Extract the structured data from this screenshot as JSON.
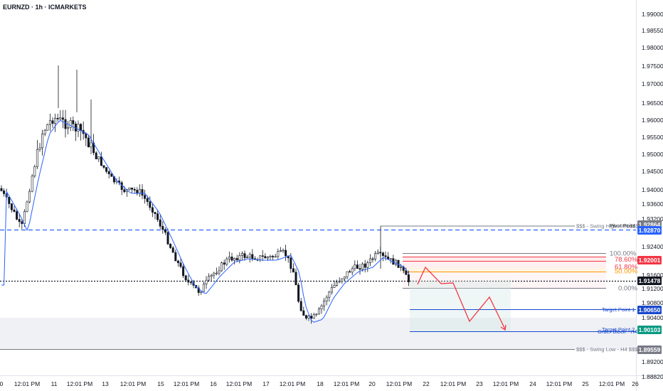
{
  "header": {
    "symbol_title": "EURNZD · 1h · ICMARKETS"
  },
  "y_axis": {
    "ticks": [
      "1.99000",
      "1.98550",
      "1.98000",
      "1.97500",
      "1.97000",
      "1.96500",
      "1.96000",
      "1.95500",
      "1.95000",
      "1.94500",
      "1.94000",
      "1.93600",
      "1.93200",
      "1.92400",
      "1.91600",
      "1.91200",
      "1.90800",
      "1.90400",
      "1.89200",
      "1.88820"
    ]
  },
  "x_axis": {
    "ticks": [
      "0",
      "12:01 PM",
      "11",
      "12:01 PM",
      "13",
      "12:01 PM",
      "15",
      "12:01 PM",
      "16",
      "12:01 PM",
      "17",
      "12:01 PM",
      "18",
      "12:01 PM",
      "20",
      "12:01 PM",
      "22",
      "12:01 PM",
      "23",
      "12:01 PM",
      "24",
      "12:01 PM",
      "25",
      "12:01 PM",
      "26"
    ]
  },
  "price_tags": [
    {
      "id": "swing-high",
      "label": "1.92864",
      "color": "#787b86"
    },
    {
      "id": "pivot",
      "label": "1.92870",
      "color": "#2962ff"
    },
    {
      "id": "fib-top",
      "label": "1.92001",
      "color": "#f23645"
    },
    {
      "id": "current",
      "label": "1.91478",
      "color": "#131722"
    },
    {
      "id": "target-1",
      "label": "1.90650",
      "color": "#1848cc"
    },
    {
      "id": "order-block",
      "label": "1.90103",
      "color": "#089981"
    },
    {
      "id": "swing-low",
      "label": "1.89559",
      "color": "#787b86"
    }
  ],
  "annotations": {
    "swing_high": "$$$ - Swing High - H4 $$$",
    "pivot_point": "Pivot Point",
    "swing_low": "$$$ - Swing Low - H4 $$$",
    "target_point_1": "Target Point 1",
    "target_point_2": "Target Point 2",
    "order_block": "Order Block - H4"
  },
  "fibonacci": {
    "levels": [
      "100.00%",
      "78.60%",
      "61.80%",
      "50.00%",
      "0.00%"
    ],
    "colors": [
      "#787b86",
      "#f23645",
      "#f23645",
      "#ff9800",
      "#787b86"
    ]
  },
  "colors": {
    "candle": "#131722",
    "moving_average": "#2962ff",
    "pivot_line": "#1848cc",
    "projection": "#f23645",
    "target_zone": "#d1e8e6"
  }
}
